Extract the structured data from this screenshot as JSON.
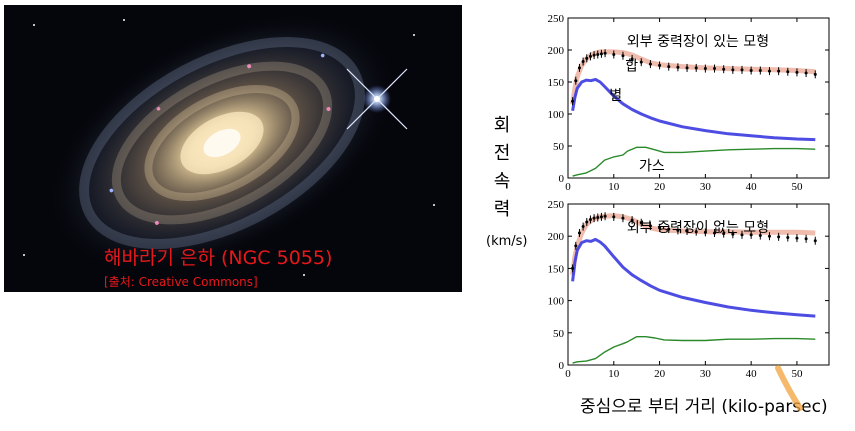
{
  "galaxy_caption": {
    "title": "해바라기 은하 (NGC 5055)",
    "source": "[출처: Creative Commons]"
  },
  "y_axis_label": {
    "chars": [
      "회",
      "전",
      "속",
      "력"
    ],
    "unit": "(km/s)"
  },
  "x_axis_label": "중심으로 부터 거리 (kilo-parsec)",
  "colors": {
    "total": "#e8a08a",
    "stars": "#3a3ae0",
    "gas": "#2a8a2a",
    "data": "#000000",
    "caption": "#e8181a",
    "accent": "#f2a23a"
  },
  "chart_data": [
    {
      "type": "line",
      "title": "외부 중력장이 있는 모형",
      "xlim": [
        0,
        57
      ],
      "ylim": [
        0,
        250
      ],
      "xticks": [
        0,
        10,
        20,
        30,
        40,
        50
      ],
      "yticks": [
        0,
        50,
        100,
        150,
        200,
        250
      ],
      "series": [
        {
          "name": "합",
          "color": "#e8a08a",
          "x": [
            1,
            1.5,
            2,
            3,
            4,
            5,
            6,
            7,
            8,
            10,
            12,
            14,
            16,
            18,
            20,
            25,
            30,
            35,
            40,
            45,
            50,
            54
          ],
          "y": [
            115,
            140,
            158,
            176,
            186,
            192,
            195,
            197,
            197,
            197,
            196,
            192,
            186,
            180,
            177,
            174,
            172,
            171,
            170,
            169,
            168,
            166
          ]
        },
        {
          "name": "별",
          "color": "#3a3ae0",
          "x": [
            1,
            1.5,
            2,
            3,
            4,
            5,
            6,
            7,
            8,
            10,
            12,
            14,
            16,
            18,
            20,
            25,
            30,
            35,
            40,
            45,
            50,
            54
          ],
          "y": [
            105,
            126,
            140,
            150,
            153,
            152,
            154,
            150,
            143,
            128,
            116,
            107,
            100,
            94,
            89,
            80,
            74,
            69,
            66,
            63,
            61,
            60
          ]
        },
        {
          "name": "가스",
          "color": "#2a8a2a",
          "x": [
            1,
            2,
            4,
            6,
            8,
            10,
            12,
            13,
            15,
            17,
            19,
            21,
            25,
            30,
            35,
            40,
            45,
            50,
            54
          ],
          "y": [
            3,
            5,
            8,
            15,
            28,
            33,
            36,
            42,
            48,
            48,
            44,
            40,
            40,
            42,
            44,
            45,
            46,
            46,
            45
          ]
        }
      ],
      "points": {
        "x": [
          1,
          1.7,
          2.5,
          3.3,
          4.1,
          4.9,
          5.7,
          6.5,
          7.3,
          8.1,
          10,
          12,
          14,
          16,
          18,
          20,
          22,
          24,
          26,
          28,
          30,
          32,
          34,
          36,
          38,
          40,
          42,
          44,
          46,
          48,
          50,
          52,
          54
        ],
        "y": [
          120,
          152,
          172,
          182,
          187,
          190,
          192,
          193,
          194,
          195,
          193,
          191,
          186,
          181,
          178,
          176,
          174,
          173,
          172,
          172,
          171,
          171,
          170,
          169,
          169,
          168,
          168,
          167,
          167,
          166,
          165,
          164,
          162
        ]
      },
      "annotations": [
        "합",
        "별",
        "가스"
      ]
    },
    {
      "type": "line",
      "title": "외부 중력장이 없는 모형",
      "xlim": [
        0,
        57
      ],
      "ylim": [
        0,
        250
      ],
      "xticks": [
        0,
        10,
        20,
        30,
        40,
        50
      ],
      "yticks": [
        0,
        50,
        100,
        150,
        200,
        250
      ],
      "series": [
        {
          "name": "합",
          "color": "#e8a08a",
          "x": [
            1,
            1.5,
            2,
            3,
            4,
            5,
            6,
            7,
            8,
            10,
            12,
            14,
            16,
            18,
            20,
            25,
            30,
            35,
            40,
            45,
            50,
            54
          ],
          "y": [
            140,
            168,
            185,
            205,
            218,
            224,
            228,
            230,
            231,
            232,
            230,
            226,
            219,
            213,
            210,
            208,
            207,
            207,
            206,
            206,
            206,
            205
          ]
        },
        {
          "name": "별",
          "color": "#3a3ae0",
          "x": [
            1,
            1.5,
            2,
            3,
            4,
            5,
            6,
            7,
            8,
            10,
            12,
            14,
            16,
            18,
            20,
            25,
            30,
            35,
            40,
            45,
            50,
            54
          ],
          "y": [
            130,
            160,
            178,
            190,
            193,
            192,
            195,
            191,
            185,
            168,
            152,
            140,
            131,
            123,
            116,
            105,
            97,
            90,
            85,
            81,
            78,
            76
          ]
        },
        {
          "name": "가스",
          "color": "#2a8a2a",
          "x": [
            1,
            2,
            4,
            6,
            8,
            10,
            12,
            13,
            15,
            17,
            19,
            21,
            25,
            30,
            35,
            40,
            45,
            50,
            54
          ],
          "y": [
            3,
            5,
            6,
            10,
            20,
            28,
            33,
            36,
            44,
            44,
            42,
            39,
            38,
            38,
            40,
            40,
            41,
            41,
            40
          ]
        }
      ],
      "points": {
        "x": [
          1,
          1.7,
          2.5,
          3.3,
          4.1,
          4.9,
          5.7,
          6.5,
          7.3,
          8.1,
          10,
          12,
          14,
          16,
          18,
          20,
          22,
          24,
          26,
          28,
          30,
          32,
          34,
          36,
          38,
          40,
          42,
          44,
          46,
          48,
          50,
          52,
          54
        ],
        "y": [
          150,
          185,
          205,
          215,
          222,
          226,
          228,
          229,
          230,
          231,
          230,
          228,
          225,
          221,
          216,
          213,
          211,
          209,
          208,
          207,
          206,
          205,
          204,
          203,
          202,
          202,
          201,
          200,
          199,
          198,
          197,
          196,
          193
        ]
      },
      "annotations": []
    }
  ]
}
